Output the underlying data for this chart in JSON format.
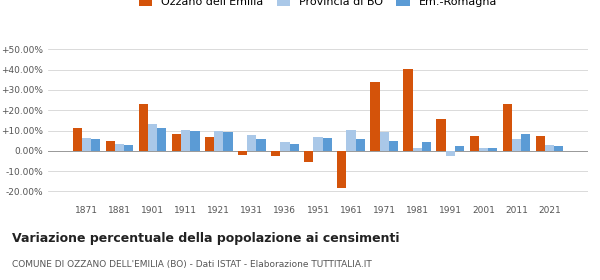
{
  "years": [
    1871,
    1881,
    1901,
    1911,
    1921,
    1931,
    1936,
    1951,
    1961,
    1971,
    1981,
    1991,
    2001,
    2011,
    2021
  ],
  "ozzano": [
    11.5,
    5.0,
    23.0,
    8.5,
    7.0,
    -2.0,
    -2.5,
    -5.5,
    -18.5,
    34.0,
    40.5,
    15.5,
    7.5,
    23.0,
    7.5
  ],
  "provincia": [
    6.5,
    3.5,
    13.0,
    10.5,
    10.0,
    8.0,
    4.5,
    7.0,
    10.5,
    9.5,
    1.5,
    -2.5,
    1.5,
    6.0,
    3.0
  ],
  "emilia": [
    6.0,
    3.0,
    11.5,
    10.0,
    9.5,
    6.0,
    3.5,
    6.5,
    6.0,
    5.0,
    4.5,
    2.5,
    1.5,
    8.5,
    2.5
  ],
  "color_ozzano": "#d4530a",
  "color_provincia": "#aac8e8",
  "color_emilia": "#5b9bd5",
  "title": "Variazione percentuale della popolazione ai censimenti",
  "subtitle": "COMUNE DI OZZANO DELL'EMILIA (BO) - Dati ISTAT - Elaborazione TUTTITALIA.IT",
  "legend_labels": [
    "Ozzano dell'Emilia",
    "Provincia di BO",
    "Em.-Romagna"
  ],
  "ylim": [
    -25,
    55
  ],
  "yticks": [
    -20,
    -10,
    0,
    10,
    20,
    30,
    40,
    50
  ],
  "ytick_labels": [
    "-20.00%",
    "-10.00%",
    "0.00%",
    "+10.00%",
    "+20.00%",
    "+30.00%",
    "+40.00%",
    "+50.00%"
  ],
  "bar_width": 0.28
}
